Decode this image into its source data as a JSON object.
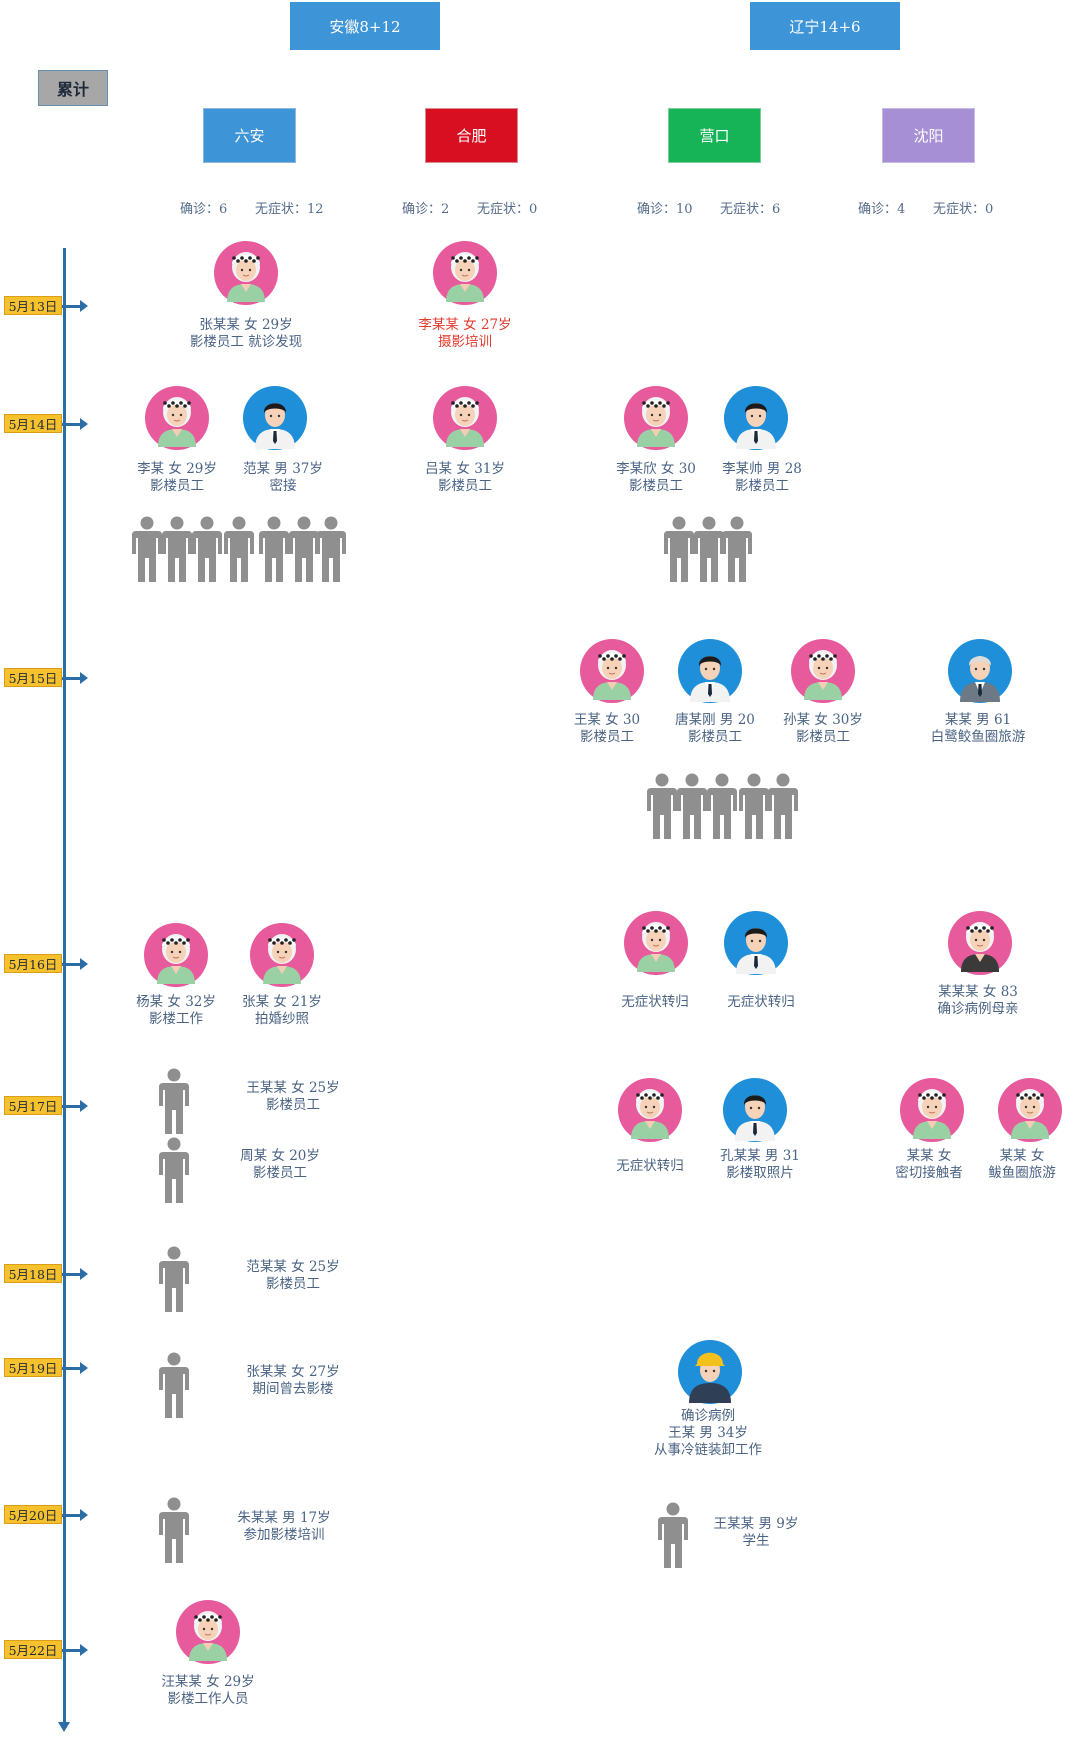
{
  "header": {
    "provinces": [
      {
        "name": "安徽8+12"
      },
      {
        "name": "辽宁14+6"
      }
    ],
    "cumulative": "累计",
    "cities": [
      {
        "name": "六安",
        "stat_confirmed": "确诊：6",
        "stat_asym": "无症状：12",
        "color": "#3d94d6"
      },
      {
        "name": "合肥",
        "stat_confirmed": "确诊：2",
        "stat_asym": "无症状：0",
        "color": "#d80f20"
      },
      {
        "name": "营口",
        "stat_confirmed": "确诊：10",
        "stat_asym": "无症状：6",
        "color": "#16b457"
      },
      {
        "name": "沈阳",
        "stat_confirmed": "确诊：4",
        "stat_asym": "无症状：0",
        "color": "#a78fd6"
      }
    ]
  },
  "dates": [
    "5月13日",
    "5月14日",
    "5月15日",
    "5月16日",
    "5月17日",
    "5月18日",
    "5月19日",
    "5月20日",
    "5月22日"
  ],
  "cases": {
    "c1": [
      "张某某  女  29岁",
      "影楼员工  就诊发现"
    ],
    "c2": [
      "李某某  女  27岁",
      "摄影培训"
    ],
    "c3": [
      "李某  女  29岁",
      "影楼员工"
    ],
    "c4": [
      "范某  男  37岁",
      "密接"
    ],
    "c5": [
      "吕某  女  31岁",
      "影楼员工"
    ],
    "c6": [
      "李某欣  女  30",
      "影楼员工"
    ],
    "c7": [
      "李某帅  男  28",
      "影楼员工"
    ],
    "c8": [
      "王某  女  30",
      "影楼员工"
    ],
    "c9": [
      "唐某刚  男  20",
      "影楼员工"
    ],
    "c10": [
      "孙某  女  30岁",
      "影楼员工"
    ],
    "c11": [
      "某某  男  61",
      "白鹭鲛鱼圈旅游"
    ],
    "c12": [
      "杨某  女  32岁",
      "影楼工作"
    ],
    "c13": [
      "张某  女  21岁",
      "拍婚纱照"
    ],
    "c14": [
      "无症状转归"
    ],
    "c15": [
      "无症状转归"
    ],
    "c16": [
      "某某某  女  83",
      "确诊病例母亲"
    ],
    "c17": [
      "王某某  女  25岁",
      "影楼员工"
    ],
    "c18": [
      "周某  女  20岁",
      "影楼员工"
    ],
    "c19": [
      "无症状转归"
    ],
    "c20": [
      "孔某某  男  31",
      "影楼取照片"
    ],
    "c21": [
      "某某  女",
      "密切接触者"
    ],
    "c22": [
      "某某  女",
      "鲅鱼圈旅游"
    ],
    "c23": [
      "范某某  女  25岁",
      "影楼员工"
    ],
    "c24": [
      "张某某  女  27岁",
      "期间曾去影楼"
    ],
    "c25": [
      "确诊病例",
      "王某  男  34岁",
      "从事冷链装卸工作"
    ],
    "c26": [
      "朱某某  男  17岁",
      "参加影楼培训"
    ],
    "c27": [
      "王某某  男  9岁",
      "学生"
    ],
    "c28": [
      "汪某某  女  29岁",
      "影楼工作人员"
    ]
  },
  "colors": {
    "avatar_female_bg": "#e75a9c",
    "avatar_male_bg": "#1e8fd8",
    "person_gray": "#8f8f8f",
    "timeline": "#2b6ea6",
    "date_tag": "#f7c12d"
  }
}
